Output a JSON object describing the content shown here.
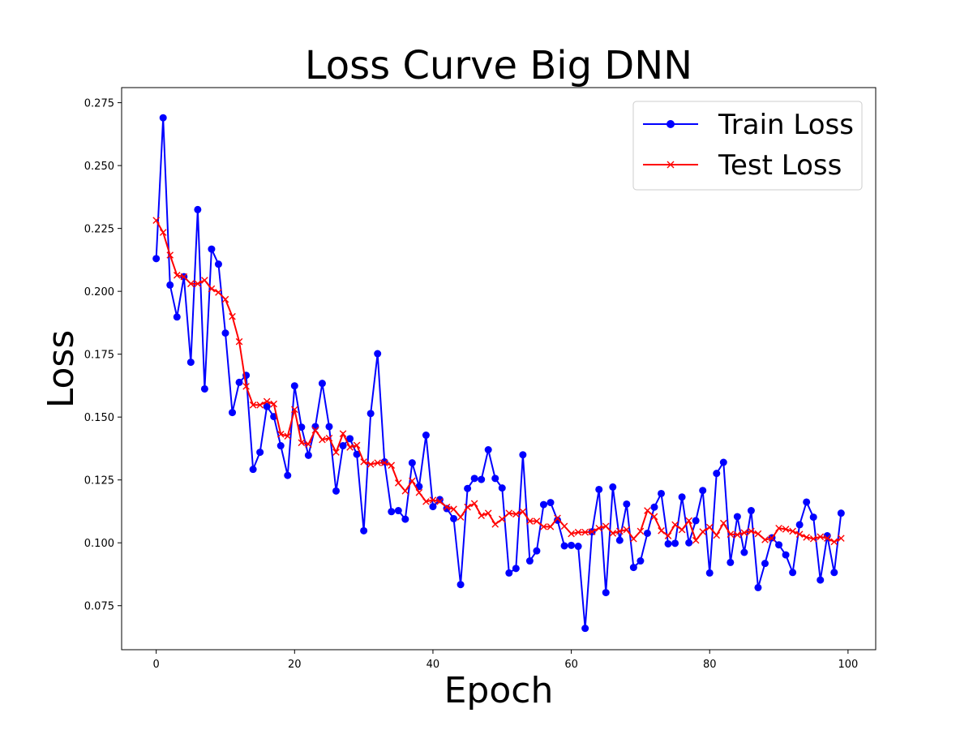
{
  "chart_data": {
    "type": "line",
    "title": "Loss Curve Big DNN",
    "xlabel": "Epoch",
    "ylabel": "Loss",
    "xlim": [
      -5,
      104
    ],
    "ylim": [
      0.0575,
      0.281
    ],
    "xticks": [
      0,
      20,
      40,
      60,
      80,
      100
    ],
    "yticks": [
      0.075,
      0.1,
      0.125,
      0.15,
      0.175,
      0.2,
      0.225,
      0.25,
      0.275
    ],
    "ytick_labels": [
      "0.075",
      "0.100",
      "0.125",
      "0.150",
      "0.175",
      "0.200",
      "0.225",
      "0.250",
      "0.275"
    ],
    "grid": false,
    "legend_position": "top-right",
    "x": [
      0,
      1,
      2,
      3,
      4,
      5,
      6,
      7,
      8,
      9,
      10,
      11,
      12,
      13,
      14,
      15,
      16,
      17,
      18,
      19,
      20,
      21,
      22,
      23,
      24,
      25,
      26,
      27,
      28,
      29,
      30,
      31,
      32,
      33,
      34,
      35,
      36,
      37,
      38,
      39,
      40,
      41,
      42,
      43,
      44,
      45,
      46,
      47,
      48,
      49,
      50,
      51,
      52,
      53,
      54,
      55,
      56,
      57,
      58,
      59,
      60,
      61,
      62,
      63,
      64,
      65,
      66,
      67,
      68,
      69,
      70,
      71,
      72,
      73,
      74,
      75,
      76,
      77,
      78,
      79,
      80,
      81,
      82,
      83,
      84,
      85,
      86,
      87,
      88,
      89,
      90,
      91,
      92,
      93,
      94,
      95,
      96,
      97,
      98,
      99
    ],
    "series": [
      {
        "name": "Train Loss",
        "color": "#0000ff",
        "marker": "circle",
        "values": [
          0.213,
          0.269,
          0.2025,
          0.1898,
          0.2058,
          0.1718,
          0.2325,
          0.1612,
          0.2168,
          0.2108,
          0.1834,
          0.1518,
          0.1638,
          0.1666,
          0.1292,
          0.136,
          0.1542,
          0.1502,
          0.1386,
          0.1268,
          0.1624,
          0.146,
          0.1348,
          0.1462,
          0.1634,
          0.1462,
          0.1206,
          0.1386,
          0.1414,
          0.1352,
          0.1048,
          0.1514,
          0.1752,
          0.1322,
          0.1124,
          0.1128,
          0.1094,
          0.1318,
          0.1224,
          0.1428,
          0.1144,
          0.1172,
          0.1136,
          0.1096,
          0.0834,
          0.1216,
          0.1256,
          0.1252,
          0.137,
          0.1256,
          0.1218,
          0.088,
          0.0898,
          0.135,
          0.0928,
          0.0968,
          0.1152,
          0.116,
          0.109,
          0.0988,
          0.099,
          0.0986,
          0.066,
          0.1044,
          0.1212,
          0.0802,
          0.1222,
          0.101,
          0.1154,
          0.0902,
          0.0928,
          0.1038,
          0.1142,
          0.1196,
          0.0996,
          0.0998,
          0.1182,
          0.1,
          0.1088,
          0.1208,
          0.088,
          0.1276,
          0.132,
          0.0922,
          0.1104,
          0.0962,
          0.1128,
          0.0822,
          0.0918,
          0.102,
          0.0992,
          0.0952,
          0.0882,
          0.1072,
          0.1162,
          0.1102,
          0.0852,
          0.1028,
          0.0882,
          0.1118
        ]
      },
      {
        "name": "Test Loss",
        "color": "#ff0000",
        "marker": "x",
        "values": [
          0.2282,
          0.2234,
          0.2144,
          0.2064,
          0.2058,
          0.203,
          0.203,
          0.2044,
          0.201,
          0.1996,
          0.1968,
          0.19,
          0.18,
          0.1622,
          0.1548,
          0.1548,
          0.1562,
          0.1552,
          0.1432,
          0.1424,
          0.153,
          0.1398,
          0.1392,
          0.1448,
          0.141,
          0.1416,
          0.136,
          0.1434,
          0.138,
          0.1388,
          0.1322,
          0.1312,
          0.1318,
          0.1318,
          0.1308,
          0.1238,
          0.1206,
          0.1246,
          0.12,
          0.1164,
          0.117,
          0.1164,
          0.1142,
          0.1134,
          0.1102,
          0.1142,
          0.1156,
          0.1108,
          0.1118,
          0.1074,
          0.1094,
          0.1118,
          0.1114,
          0.1124,
          0.1086,
          0.1086,
          0.1064,
          0.1064,
          0.1098,
          0.1066,
          0.1036,
          0.1042,
          0.1042,
          0.1044,
          0.1058,
          0.1066,
          0.1038,
          0.1046,
          0.1052,
          0.1016,
          0.1046,
          0.1128,
          0.1104,
          0.1048,
          0.1028,
          0.1072,
          0.1052,
          0.1088,
          0.101,
          0.1044,
          0.1062,
          0.103,
          0.1078,
          0.1034,
          0.1032,
          0.104,
          0.1046,
          0.1036,
          0.1012,
          0.1018,
          0.1058,
          0.1054,
          0.1046,
          0.1034,
          0.1022,
          0.1016,
          0.1024,
          0.1018,
          0.1004,
          0.1018
        ]
      }
    ]
  }
}
